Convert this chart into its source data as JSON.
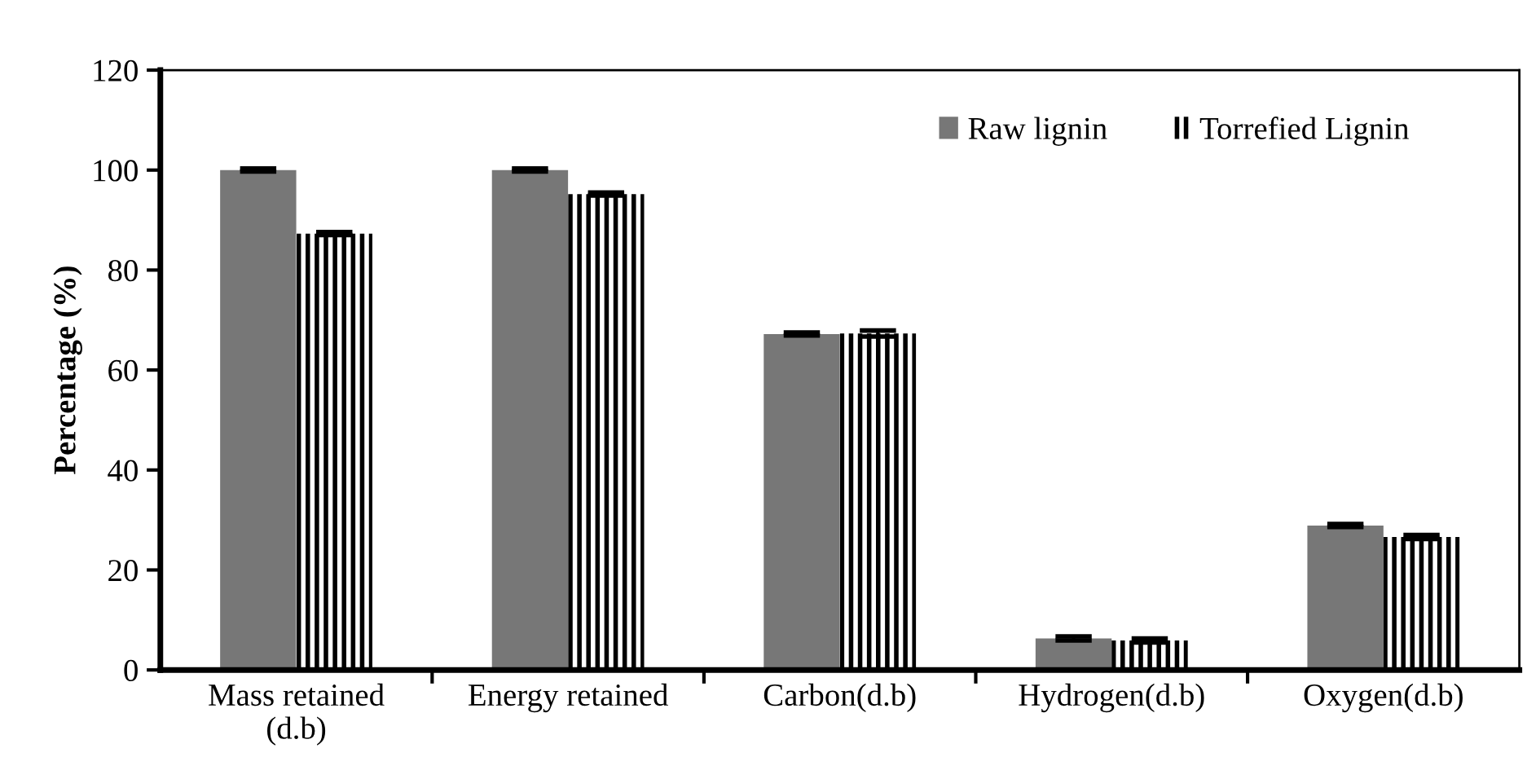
{
  "chart_data": {
    "type": "bar",
    "ylabel": "Percentage (%)",
    "categories": [
      "Mass retained\n(d.b)",
      "Energy retained",
      "Carbon(d.b)",
      "Hydrogen(d.b)",
      "Oxygen(d.b)"
    ],
    "series": [
      {
        "name": "Raw lignin",
        "color": "#777777",
        "values": [
          100,
          100,
          67.2,
          6.3,
          28.9
        ],
        "errors": [
          0.3,
          0.3,
          0.3,
          0.4,
          0.3
        ]
      },
      {
        "name": "Torrefied Lignin",
        "color": "#000000",
        "values": [
          87.3,
          95.2,
          67.3,
          5.9,
          26.6
        ],
        "errors": [
          0.3,
          0.3,
          0.6,
          0.4,
          0.4
        ]
      }
    ],
    "ylim": [
      0,
      120
    ],
    "yticks": [
      0,
      20,
      40,
      60,
      80,
      100,
      120
    ],
    "grid": false,
    "legend": "top right"
  }
}
